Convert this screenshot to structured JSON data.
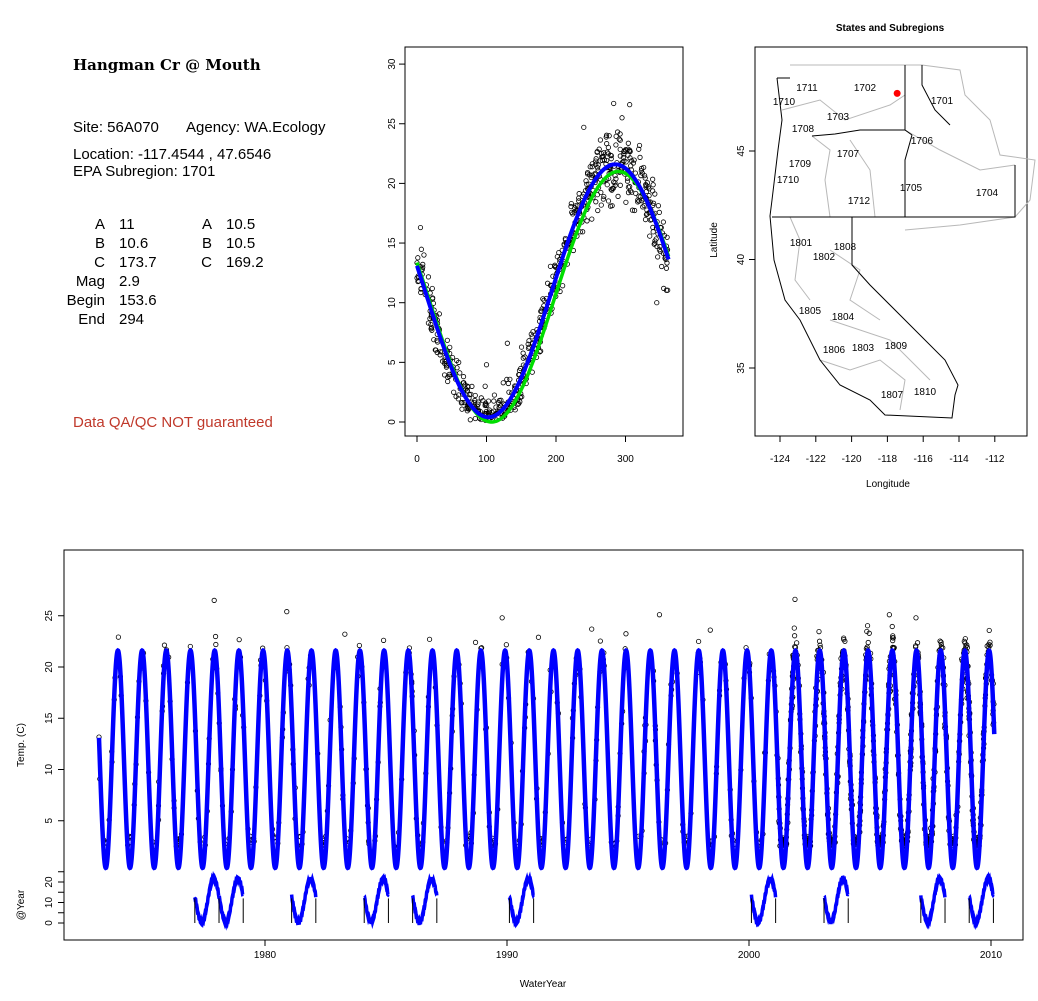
{
  "site_info": {
    "title": "Hangman Cr @ Mouth",
    "site": "Site: 56A070",
    "agency": "Agency: WA.Ecology",
    "location": "Location: -117.4544 , 47.6546",
    "subregion": "EPA Subregion: 1701",
    "params_left": [
      {
        "label": "A",
        "value": "11"
      },
      {
        "label": "B",
        "value": "10.6"
      },
      {
        "label": "C",
        "value": "173.7"
      },
      {
        "label": "Mag",
        "value": "2.9"
      },
      {
        "label": "Begin",
        "value": "153.6"
      },
      {
        "label": "End",
        "value": "294"
      }
    ],
    "params_right": [
      {
        "label": "A",
        "value": "10.5"
      },
      {
        "label": "B",
        "value": "10.5"
      },
      {
        "label": "C",
        "value": "169.2"
      }
    ],
    "disclaimer": "Data QA/QC NOT guaranteed",
    "disclaimer_color": "#c0392b"
  },
  "chart_data": [
    {
      "type": "scatter",
      "name": "day-of-water-year",
      "xlim": [
        0,
        365
      ],
      "ylim": [
        0,
        30
      ],
      "xticks": [
        "0",
        "100",
        "200",
        "300"
      ],
      "yticks": [
        "0",
        "5",
        "10",
        "15",
        "20",
        "25",
        "30"
      ],
      "fits": [
        {
          "name": "fit-blue",
          "color": "#0000ff",
          "A": 11,
          "B": 10.6,
          "C": 173.7
        },
        {
          "name": "fit-green",
          "color": "#00dd00",
          "A": 10.5,
          "B": 10.5,
          "C": 169.2
        }
      ],
      "observations": {
        "count": 650,
        "approx": "scatter around fit, sd ~2 C"
      },
      "outliers": [
        [
          5,
          16.3
        ],
        [
          10,
          14
        ],
        [
          60,
          5
        ],
        [
          100,
          4.8
        ],
        [
          130,
          6.6
        ],
        [
          240,
          24.7
        ],
        [
          283,
          26.7
        ],
        [
          306,
          26.6
        ],
        [
          295,
          25.5
        ],
        [
          345,
          10
        ]
      ]
    },
    {
      "type": "map",
      "title": "States and Subregions",
      "xlabel": "Longitude",
      "ylabel": "Latitude",
      "xticks": [
        "-124",
        "-122",
        "-120",
        "-118",
        "-116",
        "-114",
        "-112"
      ],
      "yticks": [
        "35",
        "40",
        "45"
      ],
      "site_point": {
        "lon": -117.4544,
        "lat": 47.6546,
        "color": "#ff0000"
      },
      "subregions": [
        "1711",
        "1702",
        "1701",
        "1710",
        "1703",
        "1708",
        "1706",
        "1707",
        "1709",
        "1710",
        "1705",
        "1704",
        "1712",
        "1801",
        "1808",
        "1802",
        "1805",
        "1804",
        "1806",
        "1803",
        "1809",
        "1807",
        "1810"
      ]
    },
    {
      "type": "line",
      "name": "time-series",
      "xlabel": "WaterYear",
      "ylabel": "Temp. (C)",
      "ylabel2": "@Year",
      "xticks": [
        "1980",
        "1990",
        "2000",
        "2010"
      ],
      "yticks": [
        "5",
        "10",
        "15",
        "20",
        "25"
      ],
      "yticks2": [
        "0",
        "10",
        "20"
      ],
      "year_range": [
        1973,
        2009
      ],
      "fit": {
        "A": 11,
        "B": 10.6,
        "C": 173.7,
        "color": "#0000ff"
      },
      "dense_obs_years": [
        2001,
        2010
      ],
      "outliers": [
        [
          1977.9,
          26.5
        ],
        [
          1980.9,
          25.4
        ],
        [
          1983.3,
          23.2
        ],
        [
          1983.9,
          22.1
        ],
        [
          1984.9,
          22.6
        ],
        [
          1986.8,
          22.7
        ],
        [
          1988.7,
          22.4
        ],
        [
          1989.8,
          24.8
        ],
        [
          1991.3,
          22.9
        ],
        [
          1993.5,
          23.7
        ],
        [
          1996.3,
          25.1
        ],
        [
          1998.4,
          23.6
        ],
        [
          2001.9,
          26.6
        ],
        [
          2005.8,
          25.1
        ],
        [
          2006.9,
          24.8
        ]
      ],
      "annual_segments": [
        [
          1977,
          1979
        ],
        [
          1981,
          1982
        ],
        [
          1984,
          1985
        ],
        [
          1986,
          1987
        ],
        [
          1990,
          1991
        ],
        [
          2000,
          2001
        ],
        [
          2003,
          2004
        ],
        [
          2007,
          2008
        ],
        [
          2009,
          2010
        ]
      ]
    }
  ]
}
